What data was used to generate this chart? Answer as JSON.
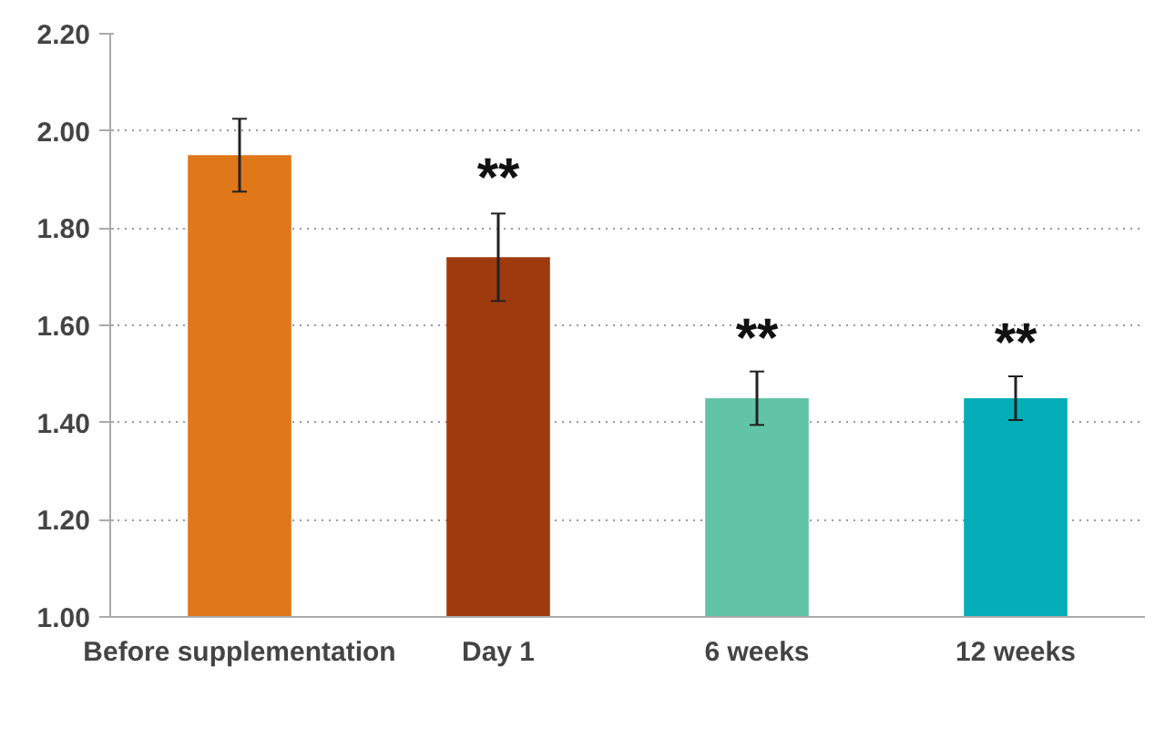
{
  "chart_data": {
    "type": "bar",
    "categories": [
      "Before supplementation",
      "Day 1",
      "6 weeks",
      "12 weeks"
    ],
    "values": [
      1.95,
      1.74,
      1.45,
      1.45
    ],
    "colors": [
      "#e07719",
      "#9e3a0e",
      "#62c4a6",
      "#04aeb8"
    ],
    "errors": [
      0.075,
      0.09,
      0.055,
      0.045
    ],
    "ylim": [
      1.0,
      2.2
    ],
    "yticks": [
      {
        "value": 1.0,
        "label": "1.00"
      },
      {
        "value": 1.2,
        "label": "1.20"
      },
      {
        "value": 1.4,
        "label": "1.40"
      },
      {
        "value": 1.6,
        "label": "1.60"
      },
      {
        "value": 1.8,
        "label": "1.80"
      },
      {
        "value": 2.0,
        "label": "2.00"
      },
      {
        "value": 2.2,
        "label": "2.20"
      }
    ],
    "grid": "y",
    "annotations": [
      {
        "text": "**",
        "x": "Day 1",
        "y": 1.84
      },
      {
        "text": "**",
        "x": "6 weeks",
        "y": 1.51
      },
      {
        "text": "**",
        "x": "12 weeks",
        "y": 1.5
      }
    ]
  }
}
